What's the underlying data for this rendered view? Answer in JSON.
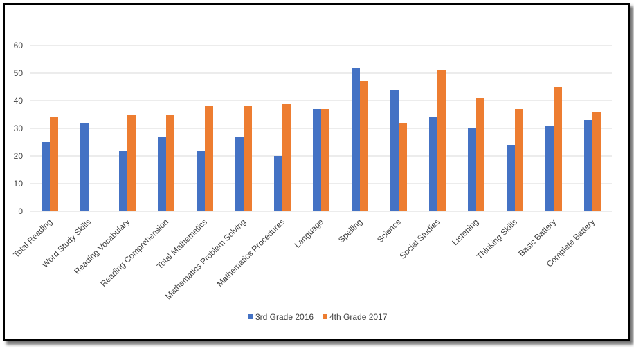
{
  "chart_data": {
    "type": "bar",
    "title": "",
    "xlabel": "",
    "ylabel": "",
    "ylim": [
      0,
      60
    ],
    "yticks": [
      0,
      10,
      20,
      30,
      40,
      50,
      60
    ],
    "grid": true,
    "legend_position": "bottom",
    "categories": [
      "Total Reading",
      "Word Study Skills",
      "Reading Vocabulary",
      "Reading Comprehension",
      "Total Mathematics",
      "Mathematics Problem Solving",
      "Mathematics Procedures",
      "Language",
      "Spelling",
      "Science",
      "Social Studies",
      "Listening",
      "Thinking Skills",
      "Basic Battery",
      "Complete Battery"
    ],
    "series": [
      {
        "name": "3rd Grade 2016",
        "color": "#4472C4",
        "values": [
          25,
          32,
          22,
          27,
          22,
          27,
          20,
          37,
          52,
          44,
          34,
          30,
          24,
          31,
          33
        ]
      },
      {
        "name": "4th Grade 2017",
        "color": "#ED7D31",
        "values": [
          34,
          null,
          35,
          35,
          38,
          38,
          39,
          37,
          47,
          32,
          51,
          41,
          37,
          45,
          36
        ]
      }
    ]
  }
}
